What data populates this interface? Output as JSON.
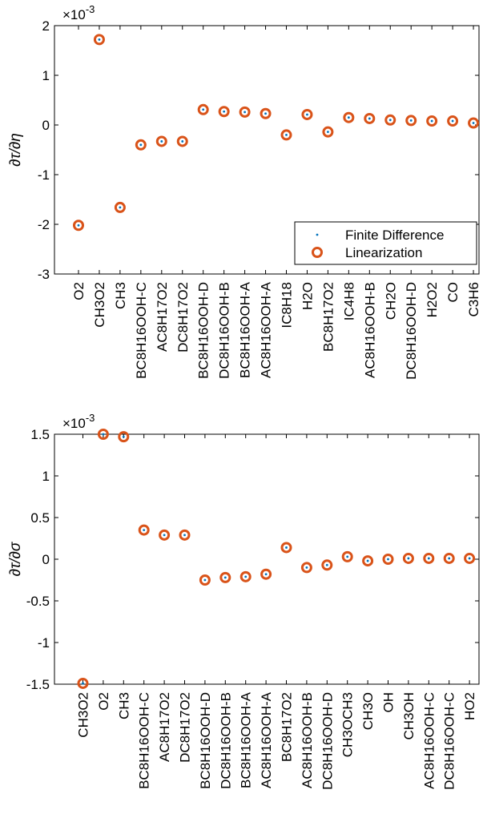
{
  "colors": {
    "marker_circle": "#D95319",
    "marker_dot": "#0072BD",
    "axis": "#000000"
  },
  "chart_data": [
    {
      "type": "scatter",
      "ylabel": "∂τ/∂η",
      "y_exponent": "×10",
      "y_exponent_power": "-3",
      "ylim": [
        -3,
        2
      ],
      "yticks": [
        "-3",
        "-2",
        "-1",
        "0",
        "1",
        "2"
      ],
      "grid": false,
      "legend": {
        "placement": "bottom-right",
        "entries": [
          "Finite Difference",
          "Linearization"
        ]
      },
      "categories": [
        "O2",
        "CH3O2",
        "CH3",
        "BC8H16OOH-C",
        "AC8H17O2",
        "DC8H17O2",
        "BC8H16OOH-D",
        "DC8H16OOH-B",
        "BC8H16OOH-A",
        "AC8H16OOH-A",
        "IC8H18",
        "H2O",
        "BC8H17O2",
        "IC4H8",
        "AC8H16OOH-B",
        "CH2O",
        "DC8H16OOH-D",
        "H2O2",
        "CO",
        "C3H6"
      ],
      "series": [
        {
          "name": "Finite Difference",
          "values": [
            -2.02,
            1.72,
            -1.66,
            -0.4,
            -0.33,
            -0.33,
            0.31,
            0.27,
            0.26,
            0.23,
            -0.2,
            0.21,
            -0.14,
            0.15,
            0.13,
            0.1,
            0.09,
            0.08,
            0.08,
            0.04
          ]
        },
        {
          "name": "Linearization",
          "values": [
            -2.02,
            1.72,
            -1.66,
            -0.4,
            -0.33,
            -0.33,
            0.31,
            0.27,
            0.26,
            0.23,
            -0.2,
            0.21,
            -0.14,
            0.15,
            0.13,
            0.1,
            0.09,
            0.08,
            0.08,
            0.04
          ]
        }
      ]
    },
    {
      "type": "scatter",
      "ylabel": "∂τ/∂σ",
      "y_exponent": "×10",
      "y_exponent_power": "-3",
      "ylim": [
        -1.5,
        1.5
      ],
      "yticks": [
        "-1.5",
        "-1",
        "-0.5",
        "0",
        "0.5",
        "1",
        "1.5"
      ],
      "grid": false,
      "categories": [
        "CH3O2",
        "O2",
        "CH3",
        "BC8H16OOH-C",
        "AC8H17O2",
        "DC8H17O2",
        "BC8H16OOH-D",
        "DC8H16OOH-B",
        "BC8H16OOH-A",
        "AC8H16OOH-A",
        "BC8H17O2",
        "AC8H16OOH-B",
        "DC8H16OOH-D",
        "CH3OCH3",
        "CH3O",
        "OH",
        "CH3OH",
        "AC8H16OOH-C",
        "DC8H16OOH-C",
        "HO2"
      ],
      "series": [
        {
          "name": "Finite Difference",
          "values": [
            -1.49,
            1.5,
            1.47,
            0.35,
            0.29,
            0.29,
            -0.25,
            -0.22,
            -0.21,
            -0.18,
            0.14,
            -0.1,
            -0.07,
            0.03,
            -0.02,
            0.0,
            0.01,
            0.01,
            0.01,
            0.01
          ]
        },
        {
          "name": "Linearization",
          "values": [
            -1.49,
            1.5,
            1.47,
            0.35,
            0.29,
            0.29,
            -0.25,
            -0.22,
            -0.21,
            -0.18,
            0.14,
            -0.1,
            -0.07,
            0.03,
            -0.02,
            0.0,
            0.01,
            0.01,
            0.01,
            0.01
          ]
        }
      ]
    }
  ]
}
